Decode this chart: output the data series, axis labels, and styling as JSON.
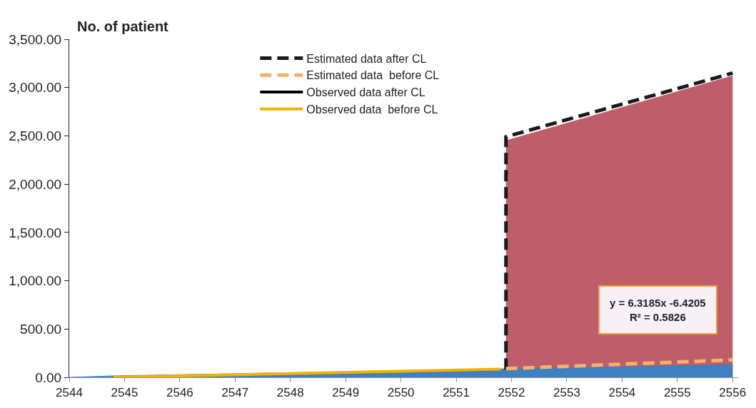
{
  "chart_data": {
    "type": "line",
    "ylabel": "No. of patient",
    "annotations": [
      "y = 6.3185x -6.4205\nR² = 0.5826"
    ],
    "series": [
      {
        "type": "area",
        "color": "#be5e6a",
        "x": [
          2551.9,
          2556
        ],
        "values": [
          2450,
          3120
        ]
      },
      {
        "type": "area",
        "color": "#3f80c0",
        "x": [
          2544,
          2544.8,
          2556
        ],
        "values": [
          0,
          15,
          130
        ]
      },
      {
        "name": "Estimated data after CL",
        "color": "#1a1a1a",
        "line_style": "dashed",
        "x": [
          2551.9,
          2551.9,
          2556
        ],
        "values": [
          80,
          2490,
          3150
        ]
      },
      {
        "name": "Estimated data  before CL",
        "color": "#f5b06a",
        "line_style": "dashed",
        "x": [
          2551.9,
          2556
        ],
        "values": [
          90,
          180
        ]
      },
      {
        "name": "Observed data after CL",
        "color": "#000000",
        "line_style": "solid"
      },
      {
        "name": "Observed data  before CL",
        "color": "#f5b000",
        "line_style": "solid",
        "x": [
          2544.8,
          2551.8
        ],
        "values": [
          0,
          85
        ]
      }
    ],
    "xlim": [
      2544,
      2556.1
    ],
    "xticks": [
      2544,
      2545,
      2546,
      2547,
      2548,
      2549,
      2550,
      2551,
      2552,
      2553,
      2554,
      2555,
      2556
    ],
    "ylim": [
      0,
      3500
    ],
    "yticks": [
      {
        "value": 0,
        "label": "0.00"
      },
      {
        "value": 500,
        "label": "500.00"
      },
      {
        "value": 1000,
        "label": "1,000.00"
      },
      {
        "value": 1500,
        "label": "1,500.00"
      },
      {
        "value": 2000,
        "label": "2,000.00"
      },
      {
        "value": 2500,
        "label": "2,500.00"
      },
      {
        "value": 3000,
        "label": "3,000.00"
      },
      {
        "value": 3500,
        "label": "3,500.00"
      }
    ],
    "legend": "top"
  }
}
